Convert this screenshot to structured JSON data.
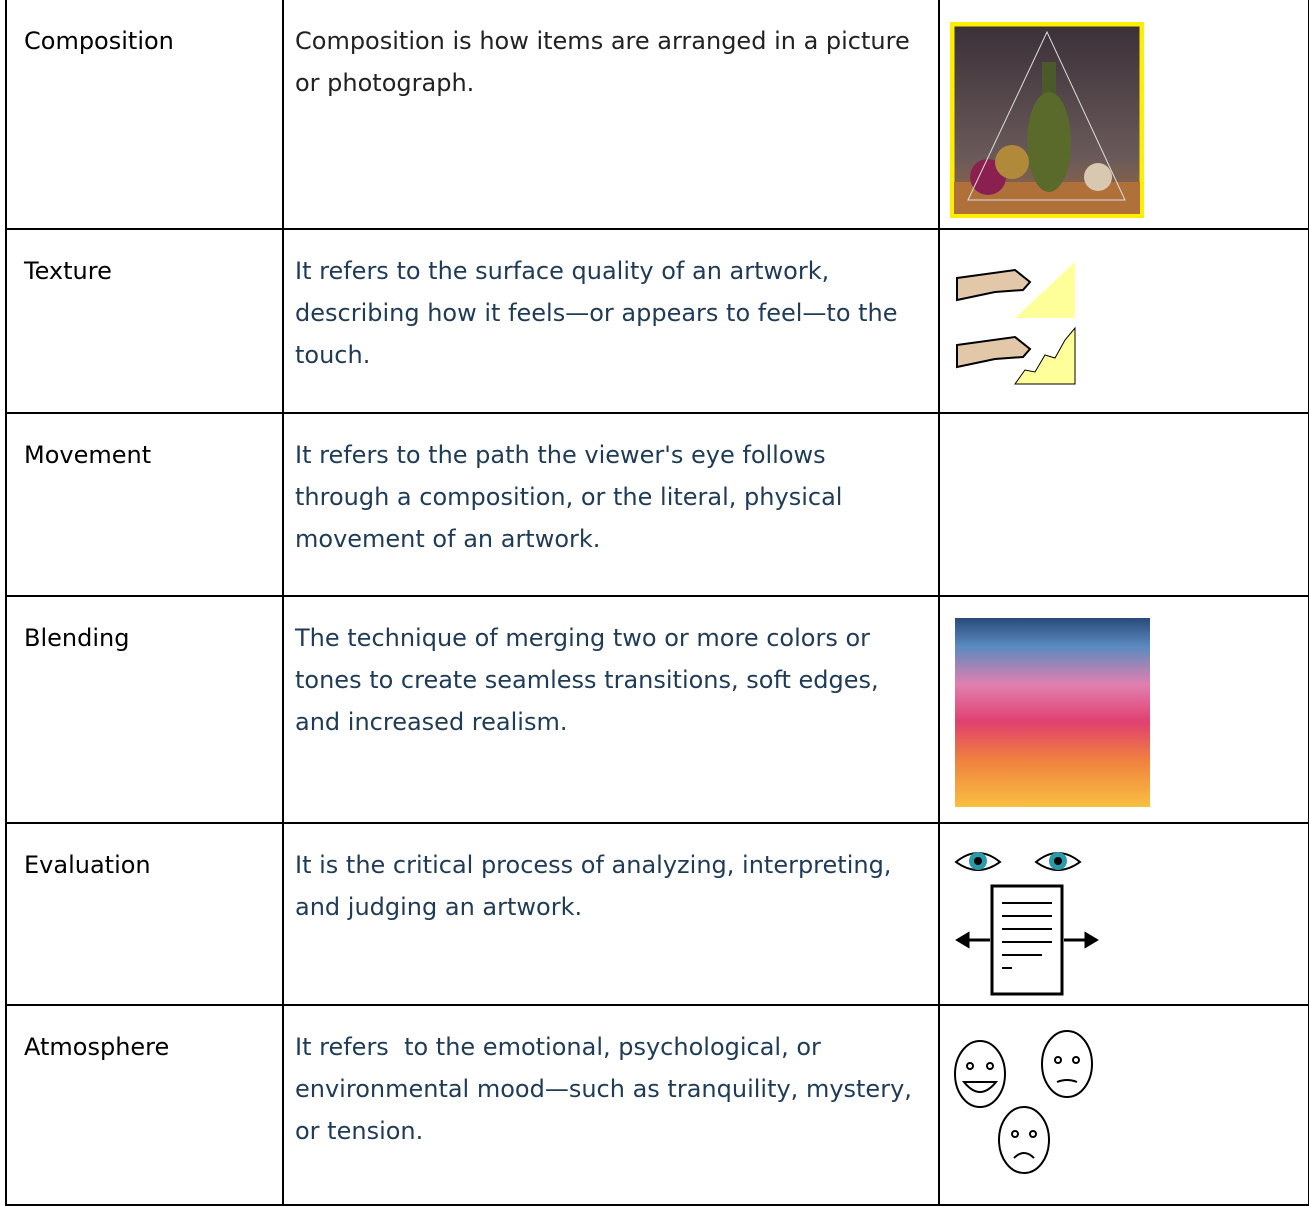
{
  "table": {
    "rows": [
      [
        "Composition",
        "Composition is how items are arranged in a picture or photograph."
      ],
      [
        "Texture",
        "It refers to the surface quality of an artwork, describing how it feels—or appears to feel—to the touch."
      ],
      [
        "Movement",
        "It refers to the path the viewer's eye follows through a composition, or the literal, physical movement of an artwork."
      ],
      [
        "Blending",
        "The technique of merging two or more colors or tones to create seamless transitions, soft edges, and increased realism."
      ],
      [
        "Evaluation",
        "It is the critical process of analyzing, interpreting, and judging an artwork."
      ],
      [
        "Atmosphere",
        "It refers  to the emotional, psychological, or environmental mood—such as tranquility, mystery, or tension."
      ]
    ]
  }
}
